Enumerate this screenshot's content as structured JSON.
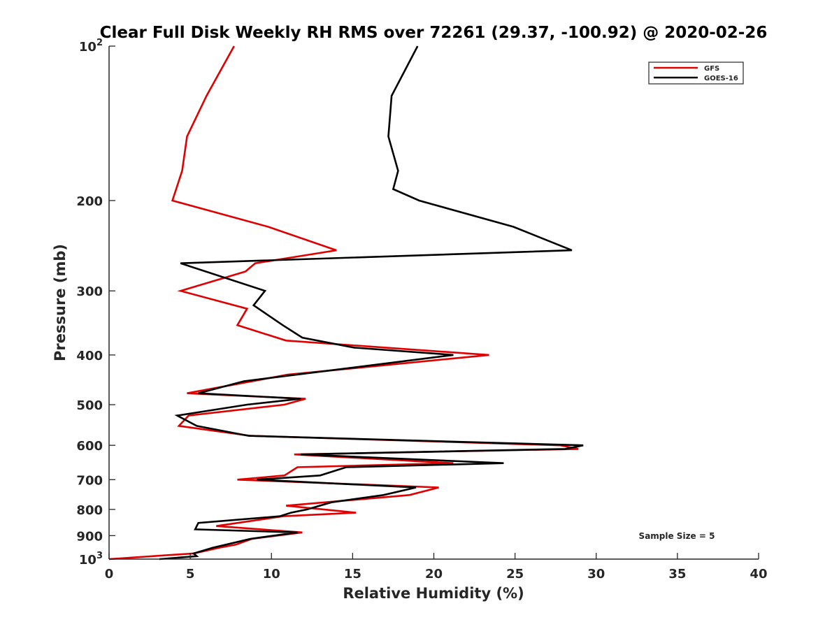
{
  "chart_data": {
    "type": "line",
    "title": "Clear Full Disk Weekly RH RMS over 72261 (29.37, -100.92) @ 2020-02-26",
    "xlabel": "Relative Humidity (%)",
    "ylabel": "Pressure (mb)",
    "xlim": [
      0,
      40
    ],
    "ylim": [
      100,
      1000
    ],
    "y_scale": "log",
    "y_reversed": true,
    "grid": false,
    "legend_position": "top-right",
    "x_ticks": [
      0,
      5,
      10,
      15,
      20,
      25,
      30,
      35,
      40
    ],
    "x_tick_labels": [
      "0",
      "5",
      "10",
      "15",
      "20",
      "25",
      "30",
      "35",
      "40"
    ],
    "y_ticks": [
      100,
      200,
      300,
      400,
      500,
      600,
      700,
      800,
      900,
      1000
    ],
    "y_tick_labels": [
      "10^2",
      "200",
      "300",
      "400",
      "500",
      "600",
      "700",
      "800",
      "900",
      "10^3"
    ],
    "annotation": "Sample Size = 5",
    "series": [
      {
        "name": "GFS",
        "color": "#e00000",
        "points": [
          [
            7.7,
            100
          ],
          [
            6.0,
            125
          ],
          [
            4.8,
            150
          ],
          [
            4.5,
            175
          ],
          [
            3.9,
            200
          ],
          [
            9.8,
            225
          ],
          [
            14.0,
            250
          ],
          [
            9.0,
            265
          ],
          [
            8.4,
            275
          ],
          [
            4.4,
            300
          ],
          [
            8.5,
            325
          ],
          [
            7.9,
            350
          ],
          [
            10.9,
            375
          ],
          [
            23.4,
            400
          ],
          [
            11.0,
            437
          ],
          [
            4.8,
            475
          ],
          [
            12.1,
            487
          ],
          [
            10.8,
            500
          ],
          [
            4.9,
            525
          ],
          [
            4.3,
            550
          ],
          [
            8.7,
            575
          ],
          [
            27.8,
            600
          ],
          [
            28.9,
            610
          ],
          [
            11.4,
            625
          ],
          [
            21.2,
            650
          ],
          [
            11.6,
            662
          ],
          [
            10.8,
            687
          ],
          [
            7.9,
            700
          ],
          [
            20.3,
            725
          ],
          [
            18.5,
            750
          ],
          [
            10.9,
            787
          ],
          [
            15.2,
            812
          ],
          [
            10.7,
            825
          ],
          [
            6.6,
            862
          ],
          [
            11.9,
            887
          ],
          [
            8.8,
            913
          ],
          [
            7.8,
            937
          ],
          [
            6.8,
            950
          ],
          [
            5.2,
            975
          ],
          [
            0,
            1000
          ]
        ]
      },
      {
        "name": "GOES-16",
        "color": "#000000",
        "points": [
          [
            19.0,
            100
          ],
          [
            17.4,
            125
          ],
          [
            17.2,
            150
          ],
          [
            17.8,
            175
          ],
          [
            17.5,
            190
          ],
          [
            19.1,
            200
          ],
          [
            24.9,
            225
          ],
          [
            28.5,
            250
          ],
          [
            4.4,
            265
          ],
          [
            9.6,
            300
          ],
          [
            8.9,
            320
          ],
          [
            10.7,
            350
          ],
          [
            11.9,
            370
          ],
          [
            15.1,
            387
          ],
          [
            21.2,
            400
          ],
          [
            8.3,
            450
          ],
          [
            5.5,
            475
          ],
          [
            11.8,
            487
          ],
          [
            8.5,
            500
          ],
          [
            4.2,
            525
          ],
          [
            5.4,
            550
          ],
          [
            8.6,
            575
          ],
          [
            29.2,
            600
          ],
          [
            28.1,
            610
          ],
          [
            11.8,
            625
          ],
          [
            24.3,
            650
          ],
          [
            14.6,
            662
          ],
          [
            13.0,
            687
          ],
          [
            9.1,
            700
          ],
          [
            18.9,
            725
          ],
          [
            16.9,
            750
          ],
          [
            13.7,
            775
          ],
          [
            12.2,
            800
          ],
          [
            11.2,
            812
          ],
          [
            10.5,
            825
          ],
          [
            5.5,
            850
          ],
          [
            5.3,
            875
          ],
          [
            11.6,
            887
          ],
          [
            8.7,
            913
          ],
          [
            7.2,
            937
          ],
          [
            6.4,
            950
          ],
          [
            5.2,
            975
          ],
          [
            5.4,
            987
          ],
          [
            3.1,
            1000
          ]
        ]
      }
    ]
  }
}
